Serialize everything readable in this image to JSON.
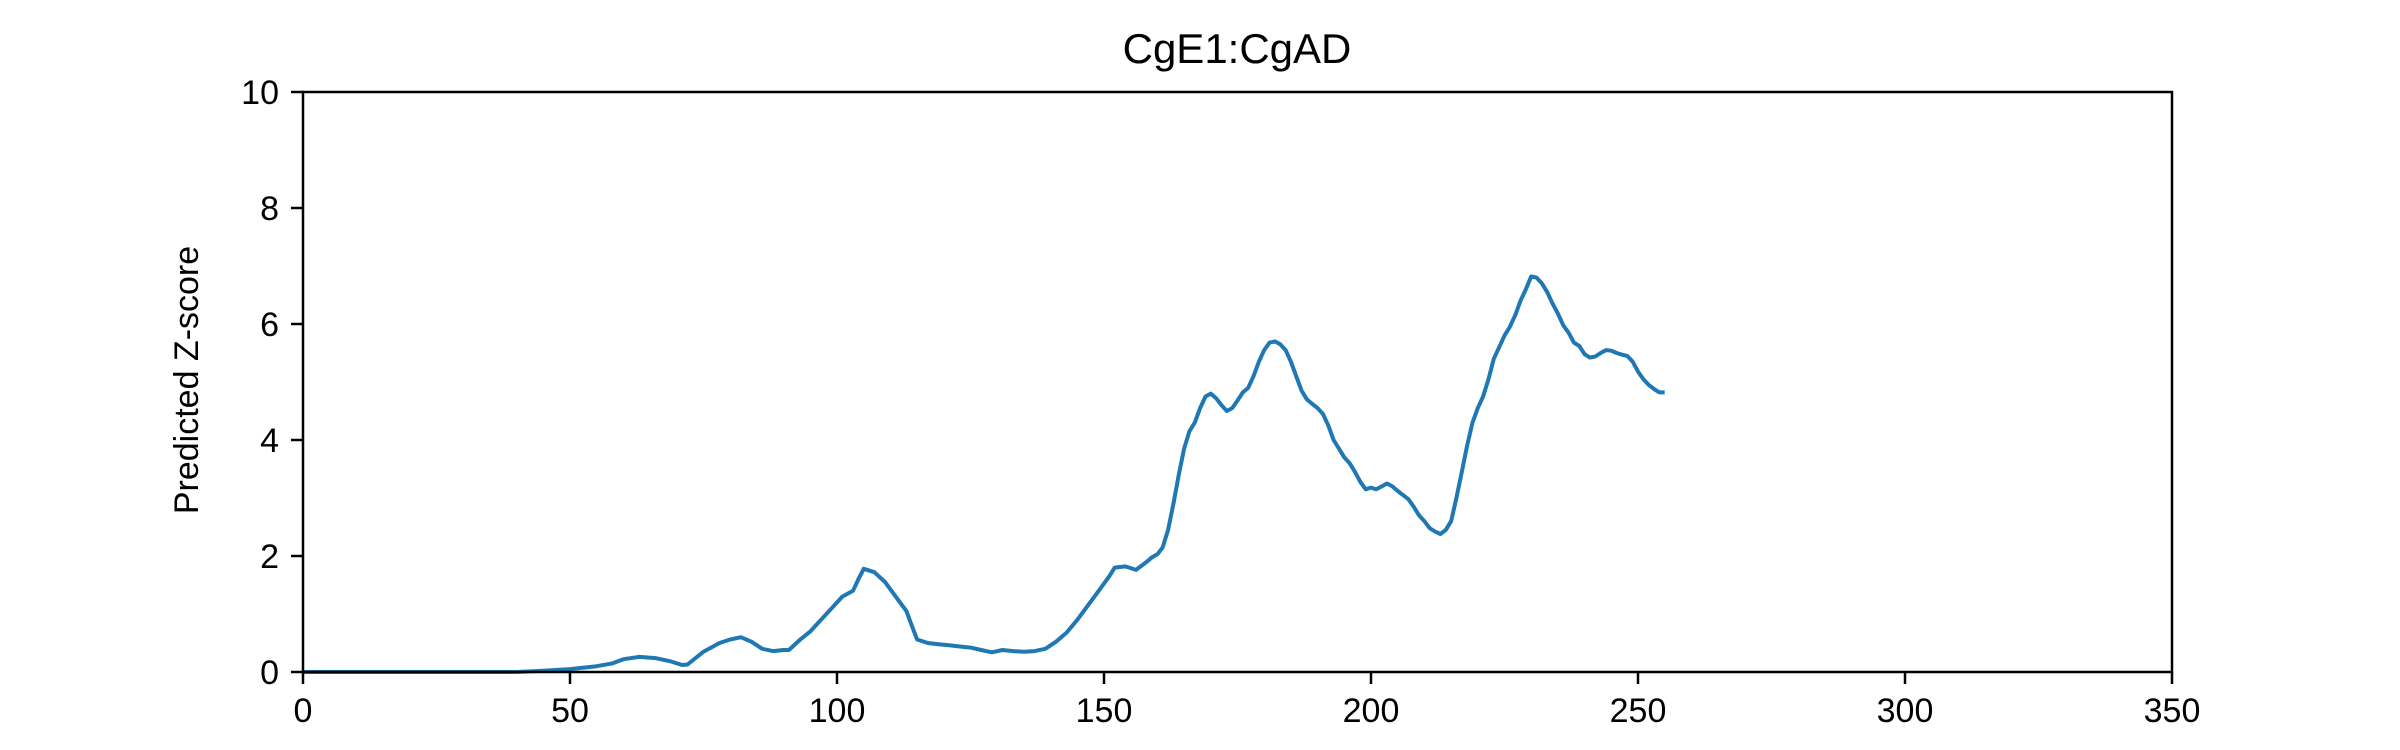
{
  "chart_data": {
    "type": "line",
    "title": "CgE1:CgAD",
    "xlabel": "",
    "ylabel": "Predicted Z-score",
    "xlim": [
      0,
      350
    ],
    "ylim": [
      0,
      10
    ],
    "xticks": [
      0,
      50,
      100,
      150,
      200,
      250,
      300,
      350
    ],
    "yticks": [
      0,
      2,
      4,
      6,
      8,
      10
    ],
    "grid": false,
    "legend": "none",
    "series": [
      {
        "color": "#1f77b4",
        "points": [
          [
            0,
            0
          ],
          [
            10,
            0
          ],
          [
            20,
            0
          ],
          [
            30,
            0
          ],
          [
            40,
            0
          ],
          [
            45,
            0.02
          ],
          [
            50,
            0.05
          ],
          [
            55,
            0.1
          ],
          [
            58,
            0.15
          ],
          [
            60,
            0.22
          ],
          [
            63,
            0.26
          ],
          [
            66,
            0.24
          ],
          [
            69,
            0.18
          ],
          [
            71,
            0.12
          ],
          [
            72,
            0.13
          ],
          [
            75,
            0.35
          ],
          [
            78,
            0.5
          ],
          [
            80,
            0.56
          ],
          [
            82,
            0.6
          ],
          [
            84,
            0.52
          ],
          [
            86,
            0.4
          ],
          [
            88,
            0.36
          ],
          [
            90,
            0.38
          ],
          [
            91,
            0.38
          ],
          [
            93,
            0.55
          ],
          [
            95,
            0.7
          ],
          [
            97,
            0.9
          ],
          [
            99,
            1.1
          ],
          [
            101,
            1.3
          ],
          [
            103,
            1.4
          ],
          [
            104,
            1.6
          ],
          [
            105,
            1.78
          ],
          [
            107,
            1.72
          ],
          [
            109,
            1.55
          ],
          [
            111,
            1.3
          ],
          [
            113,
            1.05
          ],
          [
            114,
            0.8
          ],
          [
            115,
            0.56
          ],
          [
            117,
            0.5
          ],
          [
            119,
            0.48
          ],
          [
            121,
            0.46
          ],
          [
            123,
            0.44
          ],
          [
            125,
            0.42
          ],
          [
            127,
            0.38
          ],
          [
            129,
            0.34
          ],
          [
            131,
            0.38
          ],
          [
            133,
            0.36
          ],
          [
            135,
            0.35
          ],
          [
            137,
            0.36
          ],
          [
            139,
            0.4
          ],
          [
            141,
            0.52
          ],
          [
            143,
            0.68
          ],
          [
            145,
            0.9
          ],
          [
            147,
            1.15
          ],
          [
            149,
            1.4
          ],
          [
            151,
            1.65
          ],
          [
            152,
            1.8
          ],
          [
            154,
            1.82
          ],
          [
            156,
            1.76
          ],
          [
            158,
            1.9
          ],
          [
            159,
            1.98
          ],
          [
            160,
            2.03
          ],
          [
            161,
            2.15
          ],
          [
            162,
            2.45
          ],
          [
            163,
            2.9
          ],
          [
            164,
            3.4
          ],
          [
            165,
            3.85
          ],
          [
            166,
            4.15
          ],
          [
            167,
            4.3
          ],
          [
            168,
            4.55
          ],
          [
            169,
            4.75
          ],
          [
            170,
            4.8
          ],
          [
            171,
            4.72
          ],
          [
            172,
            4.6
          ],
          [
            173,
            4.5
          ],
          [
            174,
            4.55
          ],
          [
            175,
            4.68
          ],
          [
            176,
            4.82
          ],
          [
            177,
            4.9
          ],
          [
            178,
            5.1
          ],
          [
            179,
            5.35
          ],
          [
            180,
            5.55
          ],
          [
            181,
            5.68
          ],
          [
            182,
            5.7
          ],
          [
            183,
            5.65
          ],
          [
            184,
            5.55
          ],
          [
            185,
            5.35
          ],
          [
            186,
            5.1
          ],
          [
            187,
            4.85
          ],
          [
            188,
            4.7
          ],
          [
            189,
            4.62
          ],
          [
            190,
            4.55
          ],
          [
            191,
            4.45
          ],
          [
            192,
            4.25
          ],
          [
            193,
            4.0
          ],
          [
            194,
            3.85
          ],
          [
            195,
            3.7
          ],
          [
            196,
            3.6
          ],
          [
            197,
            3.45
          ],
          [
            198,
            3.28
          ],
          [
            199,
            3.15
          ],
          [
            200,
            3.18
          ],
          [
            201,
            3.15
          ],
          [
            202,
            3.2
          ],
          [
            203,
            3.25
          ],
          [
            204,
            3.2
          ],
          [
            205,
            3.12
          ],
          [
            206,
            3.05
          ],
          [
            207,
            2.98
          ],
          [
            208,
            2.85
          ],
          [
            209,
            2.7
          ],
          [
            210,
            2.6
          ],
          [
            211,
            2.48
          ],
          [
            212,
            2.42
          ],
          [
            213,
            2.38
          ],
          [
            214,
            2.45
          ],
          [
            215,
            2.6
          ],
          [
            216,
            3.0
          ],
          [
            217,
            3.45
          ],
          [
            218,
            3.9
          ],
          [
            219,
            4.3
          ],
          [
            220,
            4.55
          ],
          [
            221,
            4.75
          ],
          [
            222,
            5.05
          ],
          [
            223,
            5.4
          ],
          [
            224,
            5.6
          ],
          [
            225,
            5.8
          ],
          [
            226,
            5.95
          ],
          [
            227,
            6.15
          ],
          [
            228,
            6.4
          ],
          [
            229,
            6.6
          ],
          [
            230,
            6.82
          ],
          [
            231,
            6.8
          ],
          [
            232,
            6.7
          ],
          [
            233,
            6.55
          ],
          [
            234,
            6.35
          ],
          [
            235,
            6.18
          ],
          [
            236,
            5.98
          ],
          [
            237,
            5.85
          ],
          [
            238,
            5.68
          ],
          [
            239,
            5.62
          ],
          [
            240,
            5.48
          ],
          [
            241,
            5.42
          ],
          [
            242,
            5.44
          ],
          [
            243,
            5.5
          ],
          [
            244,
            5.55
          ],
          [
            245,
            5.54
          ],
          [
            246,
            5.5
          ],
          [
            247,
            5.47
          ],
          [
            248,
            5.45
          ],
          [
            249,
            5.35
          ],
          [
            250,
            5.18
          ],
          [
            251,
            5.05
          ],
          [
            252,
            4.95
          ],
          [
            253,
            4.88
          ],
          [
            254,
            4.82
          ],
          [
            255,
            4.82
          ]
        ]
      }
    ]
  }
}
